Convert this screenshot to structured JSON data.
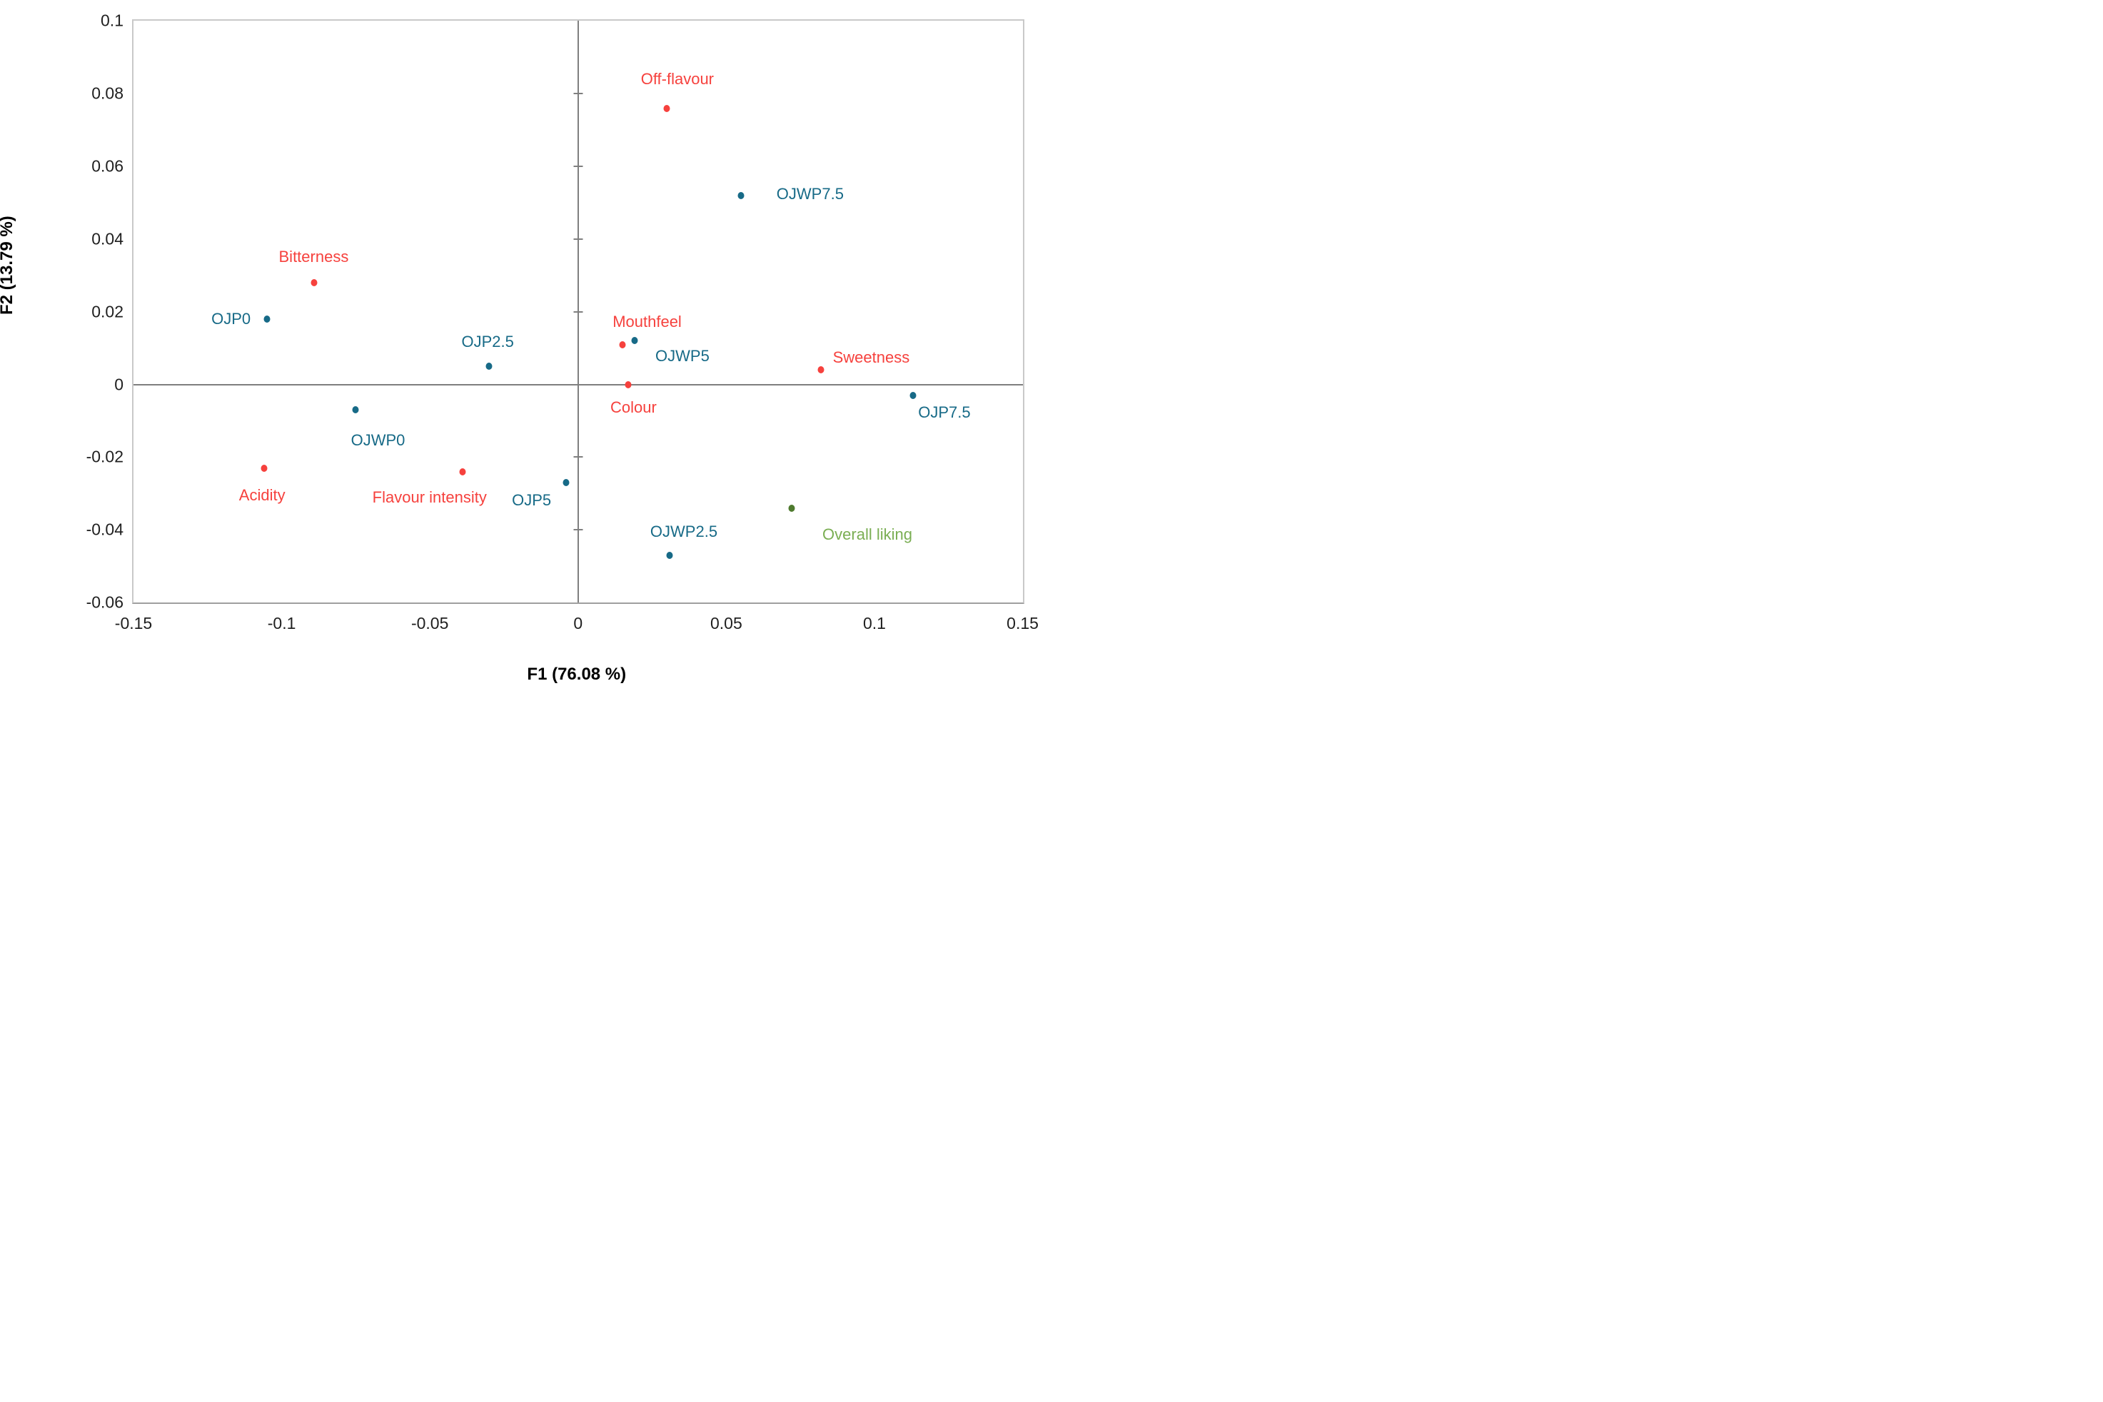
{
  "figure": {
    "background": "#ffffff",
    "x_axis_title": "F1 (76.08 %)",
    "y_axis_title": "F2 (13.79 %)"
  },
  "colors": {
    "attribute_red": "#f6413d",
    "sample_blue": "#176a87",
    "liking_dot_green": "#4e7a2e",
    "liking_label_green": "#7aae53",
    "axis_line_gray": "#7f7f7f",
    "plot_border_gray": "#c9c9c9",
    "tick_text": "#1f1f1f"
  },
  "chart_data": {
    "type": "scatter",
    "title": "",
    "xlabel": "F1 (76.08 %)",
    "ylabel": "F2 (13.79 %)",
    "xlim": [
      -0.15,
      0.15
    ],
    "ylim": [
      -0.06,
      0.1
    ],
    "grid": false,
    "legend": "none",
    "x_ticks": [
      -0.15,
      -0.1,
      -0.05,
      0,
      0.05,
      0.1,
      0.15
    ],
    "x_tick_labels": [
      "-0.15",
      "-0.1",
      "-0.05",
      "0",
      "0.05",
      "0.1",
      "0.15"
    ],
    "y_ticks": [
      0.1,
      0.08,
      0.06,
      0.04,
      0.02,
      0,
      -0.02,
      -0.04,
      -0.06
    ],
    "y_tick_labels": [
      "0.1",
      "0.08",
      "0.06",
      "0.04",
      "0.02",
      "0",
      "-0.02",
      "-0.04",
      "-0.06"
    ],
    "y_axis_tick_marks": [
      0.08,
      0.06,
      0.04,
      0.02,
      -0.02,
      -0.04
    ],
    "series": [
      {
        "name": "sensory-attributes",
        "dot_color": "#f6413d",
        "label_color": "#f6413d",
        "points": [
          {
            "label": "Off-flavour",
            "x": 0.03,
            "y": 0.076,
            "label_x": 0.0335,
            "label_y": 0.084
          },
          {
            "label": "Bitterness",
            "x": -0.089,
            "y": 0.028,
            "label_x": -0.0892,
            "label_y": 0.0351
          },
          {
            "label": "Mouthfeel",
            "x": 0.015,
            "y": 0.011,
            "label_x": 0.0233,
            "label_y": 0.0171
          },
          {
            "label": "Colour",
            "x": 0.017,
            "y": 0.0,
            "label_x": 0.0187,
            "label_y": -0.0064
          },
          {
            "label": "Sweetness",
            "x": 0.082,
            "y": 0.004,
            "label_x": 0.0989,
            "label_y": 0.0074
          },
          {
            "label": "Acidity",
            "x": -0.106,
            "y": -0.023,
            "label_x": -0.1066,
            "label_y": -0.0305
          },
          {
            "label": "Flavour intensity",
            "x": -0.039,
            "y": -0.024,
            "label_x": -0.0501,
            "label_y": -0.0312
          }
        ]
      },
      {
        "name": "juice-samples",
        "dot_color": "#176a87",
        "label_color": "#176a87",
        "points": [
          {
            "label": "OJP0",
            "x": -0.105,
            "y": 0.018,
            "label_x": -0.1171,
            "label_y": 0.018
          },
          {
            "label": "OJP2.5",
            "x": -0.03,
            "y": 0.005,
            "label_x": -0.0305,
            "label_y": 0.0116
          },
          {
            "label": "OJP5",
            "x": -0.004,
            "y": -0.027,
            "label_x": -0.0157,
            "label_y": -0.0319
          },
          {
            "label": "OJP7.5",
            "x": 0.113,
            "y": -0.003,
            "label_x": 0.1236,
            "label_y": -0.0078
          },
          {
            "label": "OJWP0",
            "x": -0.075,
            "y": -0.007,
            "label_x": -0.0675,
            "label_y": -0.0155
          },
          {
            "label": "OJWP2.5",
            "x": 0.031,
            "y": -0.047,
            "label_x": 0.0357,
            "label_y": -0.0406
          },
          {
            "label": "OJWP5",
            "x": 0.019,
            "y": 0.012,
            "label_x": 0.0352,
            "label_y": 0.0077
          },
          {
            "label": "OJWP7.5",
            "x": 0.055,
            "y": 0.052,
            "label_x": 0.0783,
            "label_y": 0.0524
          }
        ]
      },
      {
        "name": "overall-liking",
        "dot_color": "#4e7a2e",
        "label_color": "#7aae53",
        "points": [
          {
            "label": "Overall liking",
            "x": 0.072,
            "y": -0.034,
            "label_x": 0.0976,
            "label_y": -0.0413
          }
        ]
      }
    ]
  }
}
